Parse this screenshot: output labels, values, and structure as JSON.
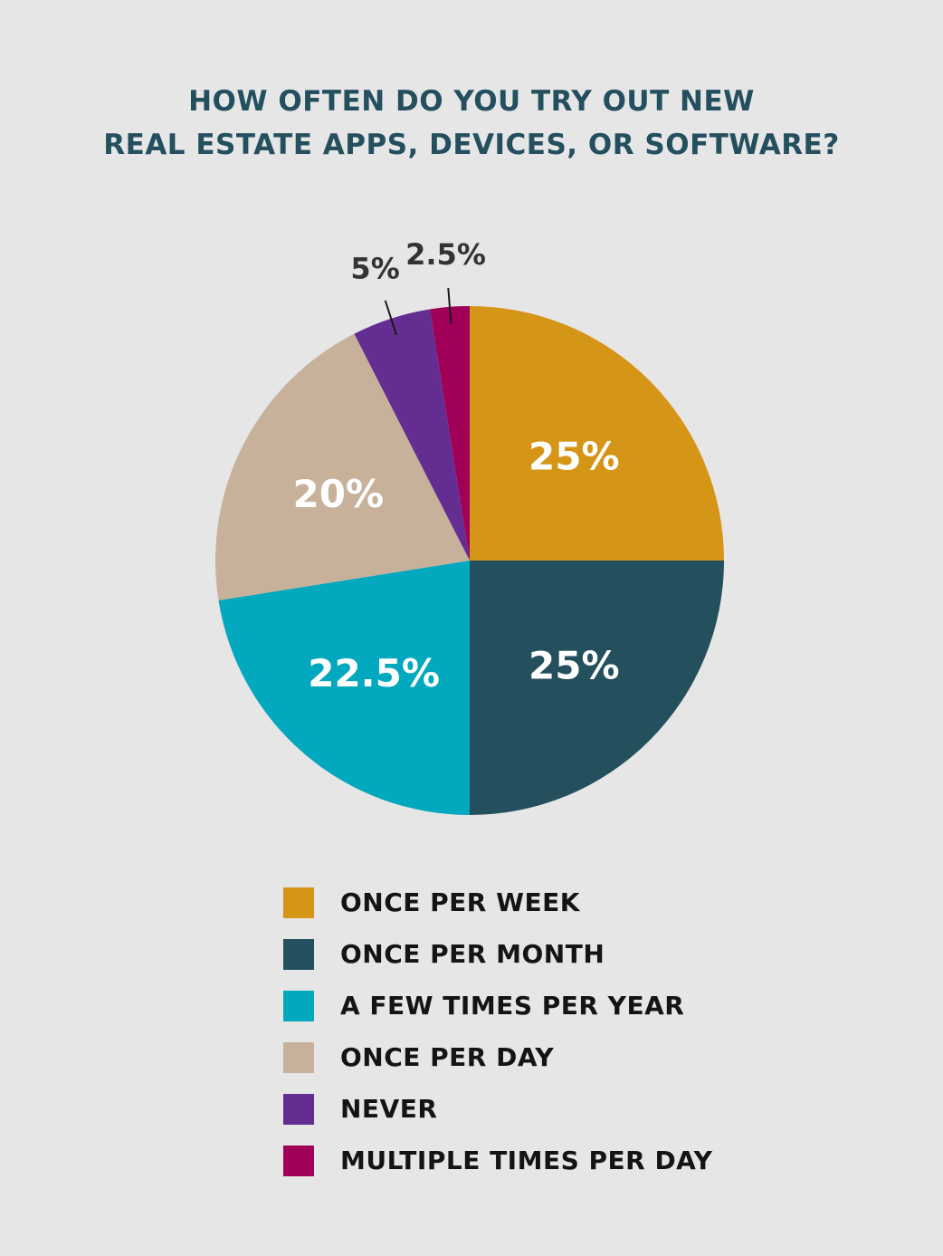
{
  "chart_data": {
    "type": "pie",
    "title_lines": [
      "HOW OFTEN DO YOU TRY OUT NEW",
      "REAL ESTATE APPS, DEVICES, OR SOFTWARE?"
    ],
    "slices": [
      {
        "name": "ONCE PER WEEK",
        "value": 25,
        "label": "25%",
        "color": "#d59517",
        "label_placement": "inside"
      },
      {
        "name": "ONCE PER MONTH",
        "value": 25,
        "label": "25%",
        "color": "#244f5d",
        "label_placement": "inside"
      },
      {
        "name": "A FEW TIMES PER YEAR",
        "value": 22.5,
        "label": "22.5%",
        "color": "#02a8bd",
        "label_placement": "inside"
      },
      {
        "name": "ONCE PER DAY",
        "value": 20,
        "label": "20%",
        "color": "#c7b19a",
        "label_placement": "inside"
      },
      {
        "name": "NEVER",
        "value": 5,
        "label": "5%",
        "color": "#632d91",
        "label_placement": "outside"
      },
      {
        "name": "MULTIPLE TIMES PER DAY",
        "value": 2.5,
        "label": "2.5%",
        "color": "#a10059",
        "label_placement": "outside"
      }
    ],
    "start": "12 o'clock",
    "direction": "clockwise",
    "legend_position": "bottom"
  }
}
